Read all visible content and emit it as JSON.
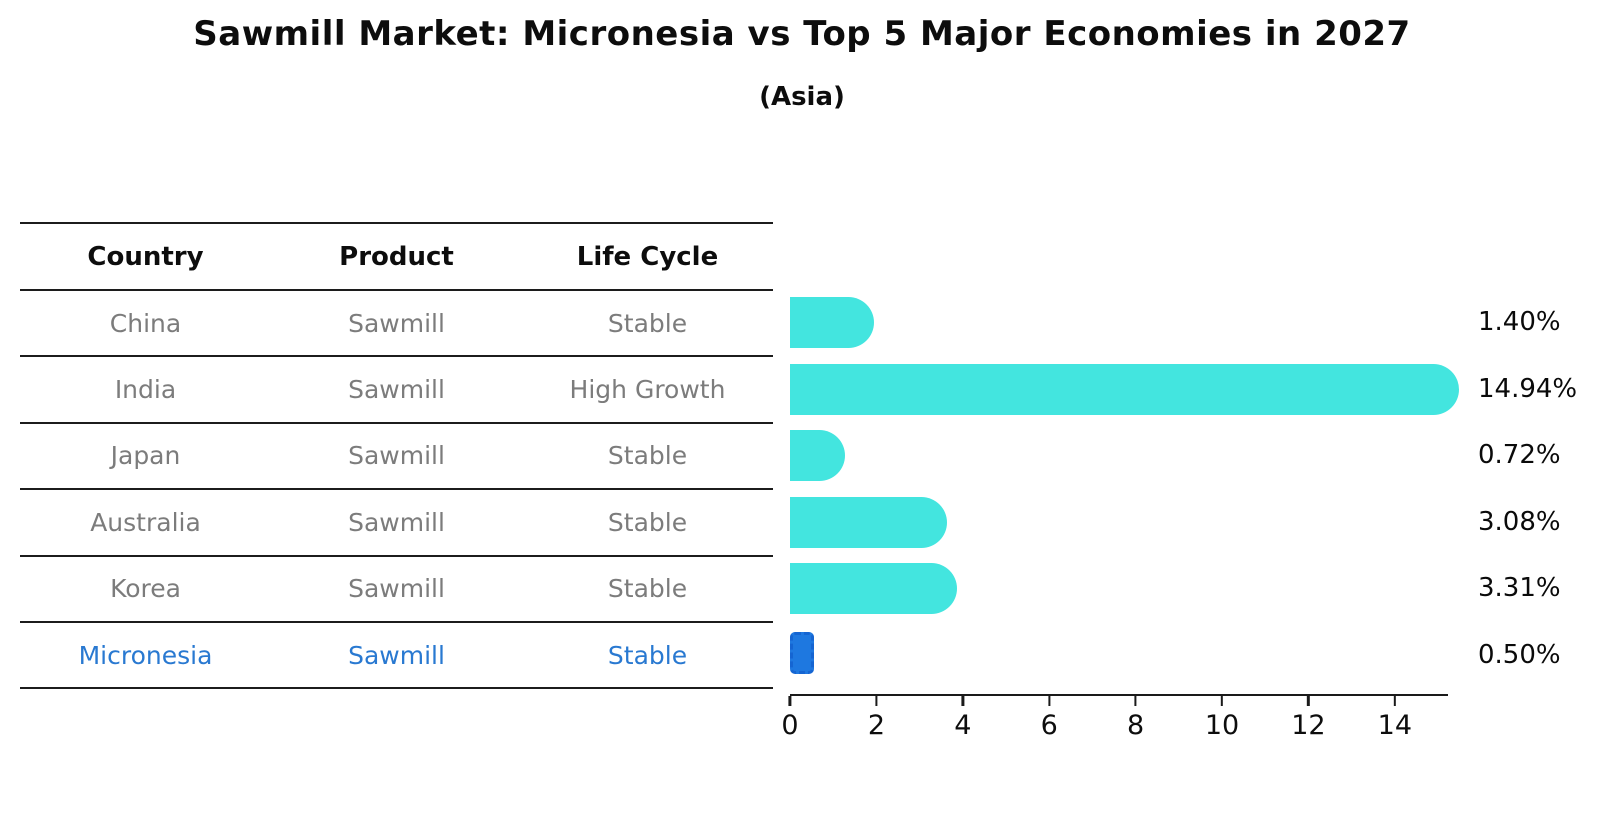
{
  "title": "Sawmill Market: Micronesia vs Top 5 Major Economies in 2027",
  "subtitle": "(Asia)",
  "table": {
    "headers": [
      "Country",
      "Product",
      "Life Cycle"
    ],
    "rows": [
      {
        "country": "China",
        "product": "Sawmill",
        "life_cycle": "Stable",
        "highlight": false
      },
      {
        "country": "India",
        "product": "Sawmill",
        "life_cycle": "High Growth",
        "highlight": false
      },
      {
        "country": "Japan",
        "product": "Sawmill",
        "life_cycle": "Stable",
        "highlight": false
      },
      {
        "country": "Australia",
        "product": "Sawmill",
        "life_cycle": "Stable",
        "highlight": false
      },
      {
        "country": "Korea",
        "product": "Sawmill",
        "life_cycle": "Stable",
        "highlight": false
      },
      {
        "country": "Micronesia",
        "product": "Sawmill",
        "life_cycle": "Stable",
        "highlight": true
      }
    ]
  },
  "chart_data": {
    "type": "bar",
    "orientation": "horizontal",
    "title": "Sawmill Market: Micronesia vs Top 5 Major Economies in 2027",
    "subtitle": "(Asia)",
    "categories": [
      "China",
      "India",
      "Japan",
      "Australia",
      "Korea",
      "Micronesia"
    ],
    "values": [
      1.4,
      14.94,
      0.72,
      3.08,
      3.31,
      0.5
    ],
    "value_labels": [
      "1.40%",
      "14.94%",
      "0.72%",
      "3.08%",
      "3.31%",
      "0.50%"
    ],
    "x_ticks": [
      0,
      2,
      4,
      6,
      8,
      10,
      12,
      14
    ],
    "xlim": [
      0,
      15.23
    ],
    "grid": false,
    "legend": false,
    "bar_color": "#43e5df",
    "highlight_color": "#1e78e0",
    "highlight_index": 5
  },
  "colors": {
    "bar_teal": "#43e5df",
    "bar_blue": "#1e78e0",
    "highlight_text": "#2979d1",
    "body_text": "#7c7c7c",
    "line": "#1c1c1c"
  }
}
